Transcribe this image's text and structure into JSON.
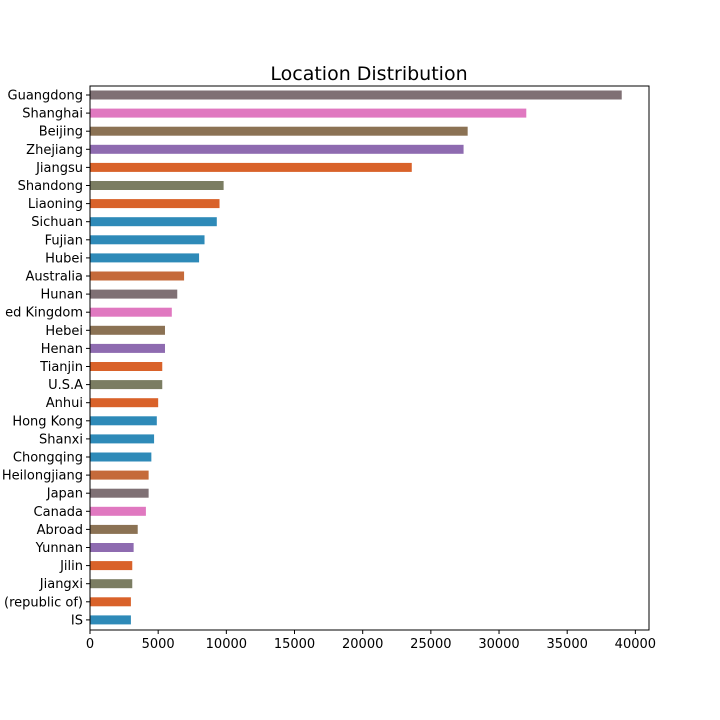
{
  "chart_data": {
    "type": "bar",
    "orientation": "horizontal",
    "title": "Location Distribution",
    "xlabel": "",
    "ylabel": "",
    "xlim": [
      0,
      41000
    ],
    "x_ticks": [
      "0",
      "5000",
      "10000",
      "15000",
      "20000",
      "25000",
      "30000",
      "35000",
      "40000"
    ],
    "grid": false,
    "legend": "none",
    "categories": [
      "Guangdong",
      "Shanghai",
      "Beijing",
      "Zhejiang",
      "Jiangsu",
      "Shandong",
      "Liaoning",
      "Sichuan",
      "Fujian",
      "Hubei",
      "Australia",
      "Hunan",
      "ed Kingdom",
      "Hebei",
      "Henan",
      "Tianjin",
      "U.S.A",
      "Anhui",
      "Hong Kong",
      "Shanxi",
      "Chongqing",
      "Heilongjiang",
      "Japan",
      "Canada",
      "Abroad",
      "Yunnan",
      "Jilin",
      "Jiangxi",
      "(republic of)",
      "IS"
    ],
    "values": [
      39000,
      32000,
      27700,
      27400,
      23600,
      9800,
      9500,
      9300,
      8400,
      8000,
      6900,
      6400,
      6000,
      5500,
      5500,
      5300,
      5300,
      5000,
      4900,
      4700,
      4500,
      4300,
      4300,
      4100,
      3500,
      3200,
      3100,
      3100,
      3000,
      3000
    ],
    "colors": [
      "#7f7074",
      "#e078c0",
      "#8b7254",
      "#8e6bb0",
      "#d9622a",
      "#7b7d62",
      "#d9622a",
      "#2e8ab8",
      "#2e8ab8",
      "#2e8ab8",
      "#c56a3a",
      "#7f7074",
      "#e078c0",
      "#8b7254",
      "#8e6bb0",
      "#d9622a",
      "#7b7d62",
      "#d9622a",
      "#2e8ab8",
      "#2e8ab8",
      "#2e8ab8",
      "#c56a3a",
      "#7f7074",
      "#e078c0",
      "#8b7254",
      "#8e6bb0",
      "#d9622a",
      "#7b7d62",
      "#d9622a",
      "#2e8ab8"
    ]
  }
}
